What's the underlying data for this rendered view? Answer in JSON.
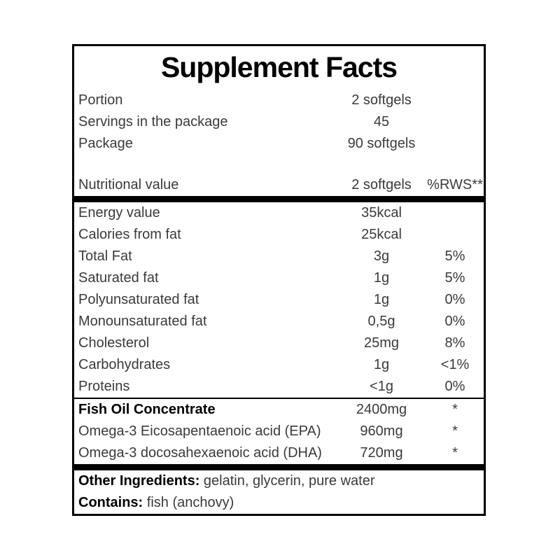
{
  "label": {
    "title": "Supplement Facts",
    "package_info": [
      {
        "label": "Portion",
        "value": "2 softgels"
      },
      {
        "label": "Servings in the package",
        "value": "45"
      },
      {
        "label": "Package",
        "value": "90 softgels"
      }
    ],
    "header": {
      "label": "Nutritional value",
      "amount": "2 softgels",
      "dv": "%RWS**"
    },
    "nutrients": [
      {
        "label": "Energy value",
        "amount": "35kcal",
        "dv": ""
      },
      {
        "label": "Calories from fat",
        "amount": "25kcal",
        "dv": ""
      },
      {
        "label": "Total Fat",
        "amount": "3g",
        "dv": "5%"
      },
      {
        "label": "Saturated fat",
        "amount": "1g",
        "dv": "5%"
      },
      {
        "label": "Polyunsaturated fat",
        "amount": "1g",
        "dv": "0%"
      },
      {
        "label": "Monounsaturated fat",
        "amount": "0,5g",
        "dv": "0%"
      },
      {
        "label": "Cholesterol",
        "amount": "25mg",
        "dv": "8%"
      },
      {
        "label": "Carbohydrates",
        "amount": "1g",
        "dv": "<1%"
      },
      {
        "label": "Proteins",
        "amount": "<1g",
        "dv": "0%"
      }
    ],
    "actives": [
      {
        "label": "Fish Oil Concentrate",
        "amount": "2400mg",
        "dv": "*"
      },
      {
        "label": "Omega-3 Eicosapentaenoic acid (EPA)",
        "amount": "960mg",
        "dv": "*"
      },
      {
        "label": "Omega-3 docosahexaenoic acid (DHA)",
        "amount": "720mg",
        "dv": "*"
      }
    ],
    "footer": [
      {
        "label": "Other Ingredients:",
        "value": " gelatin, glycerin, pure water"
      },
      {
        "label": "Contains:",
        "value": " fish (anchovy)"
      }
    ]
  },
  "colors": {
    "background": "#ffffff",
    "border": "#000000",
    "text": "#3a3a3a",
    "emphasis": "#000000"
  }
}
